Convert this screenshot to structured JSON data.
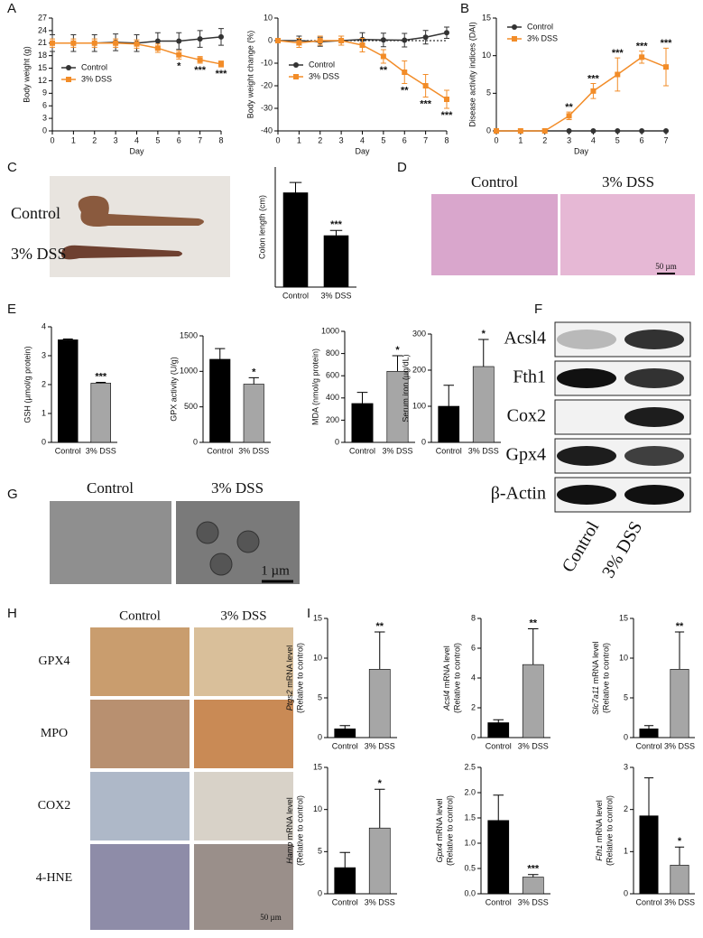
{
  "panel_letters": [
    "A",
    "B",
    "C",
    "D",
    "E",
    "F",
    "G",
    "H",
    "I"
  ],
  "photo_c": {
    "rows": [
      "Control",
      "3% DSS"
    ]
  },
  "histology_d": {
    "columns": [
      "Control",
      "3% DSS"
    ],
    "scale": "50 µm"
  },
  "blot_f": {
    "rows": [
      "Acsl4",
      "Fth1",
      "Cox2",
      "Gpx4",
      "β-Actin"
    ],
    "columns": [
      "Control",
      "3% DSS"
    ]
  },
  "tem_g": {
    "columns": [
      "Control",
      "3% DSS"
    ],
    "scale": "1 µm"
  },
  "ihc_h": {
    "columns": [
      "Control",
      "3% DSS"
    ],
    "rows": [
      "GPX4",
      "MPO",
      "COX2",
      "4-HNE"
    ],
    "scale": "50 µm"
  },
  "chart_data": [
    {
      "type": "line",
      "ylabel": "Body weight (g)",
      "xlabel": "Day",
      "x": [
        0,
        1,
        2,
        3,
        4,
        5,
        6,
        7,
        8
      ],
      "xlim": [
        0,
        8
      ],
      "xticks": [
        0,
        1,
        2,
        3,
        4,
        5,
        6,
        7,
        8
      ],
      "ylim": [
        0,
        27
      ],
      "yticks": [
        0,
        3,
        6,
        9,
        12,
        15,
        18,
        21,
        24,
        27
      ],
      "series": [
        {
          "name": "Control",
          "color": "#333333",
          "marker": "circle",
          "values": [
            21,
            21,
            21,
            21.2,
            21,
            21.5,
            21.5,
            22,
            22.5
          ],
          "errors": [
            2,
            2,
            2,
            2,
            2,
            2,
            2,
            2,
            2
          ]
        },
        {
          "name": "3% DSS",
          "color": "#f28c28",
          "marker": "square",
          "values": [
            21,
            21,
            21,
            21,
            20.8,
            19.8,
            18.2,
            17,
            16
          ],
          "errors": [
            1,
            1,
            1,
            1,
            1,
            1,
            1,
            0.8,
            0.7
          ]
        }
      ],
      "annotations": [
        {
          "x": 6,
          "label": "*"
        },
        {
          "x": 7,
          "label": "***"
        },
        {
          "x": 8,
          "label": "***"
        }
      ]
    },
    {
      "type": "line",
      "ylabel": "Body weight change (%)",
      "xlabel": "Day",
      "x": [
        0,
        1,
        2,
        3,
        4,
        5,
        6,
        7,
        8
      ],
      "xlim": [
        0,
        8
      ],
      "xticks": [
        0,
        1,
        2,
        3,
        4,
        5,
        6,
        7,
        8
      ],
      "ylim": [
        -40,
        10
      ],
      "yticks": [
        -40,
        -30,
        -20,
        -10,
        0,
        10
      ],
      "reference_line": 0,
      "series": [
        {
          "name": "Control",
          "color": "#333333",
          "marker": "circle",
          "values": [
            0,
            0,
            -0.5,
            0,
            0.5,
            0.3,
            0.2,
            1.5,
            3.5
          ],
          "errors": [
            0,
            2,
            2,
            2,
            3,
            3,
            3,
            3,
            2.5
          ]
        },
        {
          "name": "3% DSS",
          "color": "#f28c28",
          "marker": "square",
          "values": [
            0,
            -1,
            0,
            0,
            -2,
            -7,
            -14,
            -20,
            -26
          ],
          "errors": [
            0,
            2,
            2,
            2,
            3,
            3,
            5,
            5,
            4
          ]
        }
      ],
      "annotations": [
        {
          "x": 5,
          "label": "**"
        },
        {
          "x": 6,
          "label": "**"
        },
        {
          "x": 7,
          "label": "***"
        },
        {
          "x": 8,
          "label": "***"
        }
      ]
    },
    {
      "type": "line",
      "ylabel": "Disease activity indices (DAI)",
      "xlabel": "Day",
      "x": [
        0,
        1,
        2,
        3,
        4,
        5,
        6,
        7
      ],
      "xlim": [
        0,
        7
      ],
      "xticks": [
        0,
        1,
        2,
        3,
        4,
        5,
        6,
        7
      ],
      "ylim": [
        0,
        15
      ],
      "yticks": [
        0,
        5,
        10,
        15
      ],
      "series": [
        {
          "name": "Control",
          "color": "#333333",
          "marker": "circle",
          "values": [
            0,
            0,
            0,
            0,
            0,
            0,
            0,
            0
          ],
          "errors": [
            0,
            0,
            0,
            0,
            0,
            0,
            0,
            0
          ]
        },
        {
          "name": "3% DSS",
          "color": "#f28c28",
          "marker": "square",
          "values": [
            0,
            0,
            0,
            2,
            5.3,
            7.5,
            9.8,
            8.5
          ],
          "errors": [
            0,
            0,
            0,
            0.5,
            1,
            2.2,
            0.8,
            2.5
          ]
        }
      ],
      "annotations": [
        {
          "x": 3,
          "label": "**"
        },
        {
          "x": 4,
          "label": "***"
        },
        {
          "x": 5,
          "label": "***"
        },
        {
          "x": 6,
          "label": "***"
        },
        {
          "x": 7,
          "label": "***"
        }
      ]
    },
    {
      "type": "bar",
      "ylabel": "Colon length (cm)",
      "categories": [
        "Control",
        "3% DSS"
      ],
      "values": [
        5.5,
        3.0
      ],
      "errors": [
        0.6,
        0.3
      ],
      "colors": [
        "#000000",
        "#000000"
      ],
      "ylim": [
        0,
        7
      ],
      "annotations": [
        null,
        "***"
      ]
    },
    {
      "type": "bar",
      "ylabel": "GSH (µmol/g protein)",
      "categories": [
        "Control",
        "3% DSS"
      ],
      "values": [
        3.55,
        2.05
      ],
      "errors": [
        0.03,
        0.03
      ],
      "colors": [
        "#000000",
        "#a6a6a6"
      ],
      "ylim": [
        0,
        4
      ],
      "yticks": [
        0,
        1,
        2,
        3,
        4
      ],
      "annotations": [
        null,
        "***"
      ]
    },
    {
      "type": "bar",
      "ylabel": "GPX activity (U/g)",
      "categories": [
        "Control",
        "3% DSS"
      ],
      "values": [
        1170,
        820
      ],
      "errors": [
        150,
        90
      ],
      "colors": [
        "#000000",
        "#a6a6a6"
      ],
      "ylim": [
        0,
        1500
      ],
      "yticks": [
        0,
        500,
        1000,
        1500
      ],
      "annotations": [
        null,
        "*"
      ]
    },
    {
      "type": "bar",
      "ylabel": "MDA (nmol/g protein)",
      "categories": [
        "Control",
        "3% DSS"
      ],
      "values": [
        350,
        640
      ],
      "errors": [
        100,
        140
      ],
      "colors": [
        "#000000",
        "#a6a6a6"
      ],
      "ylim": [
        0,
        1000
      ],
      "yticks": [
        0,
        200,
        400,
        600,
        800,
        1000
      ],
      "annotations": [
        null,
        "*"
      ]
    },
    {
      "type": "bar",
      "ylabel": "Serum iron (µg/dL)",
      "categories": [
        "Control",
        "3% DSS"
      ],
      "values": [
        100,
        210
      ],
      "errors": [
        58,
        75
      ],
      "colors": [
        "#000000",
        "#a6a6a6"
      ],
      "ylim": [
        0,
        300
      ],
      "yticks": [
        0,
        100,
        200,
        300
      ],
      "annotations": [
        null,
        "*"
      ]
    },
    {
      "type": "bar",
      "ylabel_gene": "Ptgs2",
      "ylabel": " mRNA level",
      "ylabel2": "(Relative to control)",
      "categories": [
        "Control",
        "3% DSS"
      ],
      "values": [
        1.1,
        8.6
      ],
      "errors": [
        0.4,
        4.7
      ],
      "colors": [
        "#000000",
        "#a6a6a6"
      ],
      "ylim": [
        0,
        15
      ],
      "yticks": [
        0,
        5,
        10,
        15
      ],
      "annotations": [
        null,
        "**"
      ]
    },
    {
      "type": "bar",
      "ylabel_gene": "Acsl4",
      "ylabel": " mRNA level",
      "ylabel2": "(Relative to control)",
      "categories": [
        "Control",
        "3% DSS"
      ],
      "values": [
        1.0,
        4.9
      ],
      "errors": [
        0.2,
        2.4
      ],
      "colors": [
        "#000000",
        "#a6a6a6"
      ],
      "ylim": [
        0,
        8
      ],
      "yticks": [
        0,
        2,
        4,
        6,
        8
      ],
      "annotations": [
        null,
        "**"
      ]
    },
    {
      "type": "bar",
      "ylabel_gene": "Slc7a11",
      "ylabel": " mRNA level",
      "ylabel2": "(Relative to control)",
      "categories": [
        "Control",
        "3% DSS"
      ],
      "values": [
        1.1,
        8.6
      ],
      "errors": [
        0.4,
        4.7
      ],
      "colors": [
        "#000000",
        "#a6a6a6"
      ],
      "ylim": [
        0,
        15
      ],
      "yticks": [
        0,
        5,
        10,
        15
      ],
      "annotations": [
        null,
        "**"
      ]
    },
    {
      "type": "bar",
      "ylabel_gene": "Hamp",
      "ylabel": " mRNA level",
      "ylabel2": "(Relative to control)",
      "categories": [
        "Control",
        "3% DSS"
      ],
      "values": [
        3.1,
        7.8
      ],
      "errors": [
        1.8,
        4.6
      ],
      "colors": [
        "#000000",
        "#a6a6a6"
      ],
      "ylim": [
        0,
        15
      ],
      "yticks": [
        0,
        5,
        10,
        15
      ],
      "annotations": [
        null,
        "*"
      ]
    },
    {
      "type": "bar",
      "ylabel_gene": "Gpx4",
      "ylabel": " mRNA level",
      "ylabel2": "(Relative to control)",
      "categories": [
        "Control",
        "3% DSS"
      ],
      "values": [
        1.45,
        0.33
      ],
      "errors": [
        0.5,
        0.05
      ],
      "colors": [
        "#000000",
        "#a6a6a6"
      ],
      "ylim": [
        0,
        2.5
      ],
      "yticks": [
        {
          "value": 0,
          "label": "0.0"
        },
        0.5,
        {
          "value": 1,
          "label": "1.0"
        },
        1.5,
        {
          "value": 2,
          "label": "2.0"
        },
        2.5
      ],
      "annotations": [
        null,
        "***"
      ]
    },
    {
      "type": "bar",
      "ylabel_gene": "Fth1",
      "ylabel": " mRNA level",
      "ylabel2": "(Relative to control)",
      "categories": [
        "Control",
        "3% DSS"
      ],
      "values": [
        1.85,
        0.68
      ],
      "errors": [
        0.9,
        0.43
      ],
      "colors": [
        "#000000",
        "#a6a6a6"
      ],
      "ylim": [
        0,
        3
      ],
      "yticks": [
        0,
        1,
        2,
        3
      ],
      "annotations": [
        null,
        "*"
      ]
    }
  ]
}
